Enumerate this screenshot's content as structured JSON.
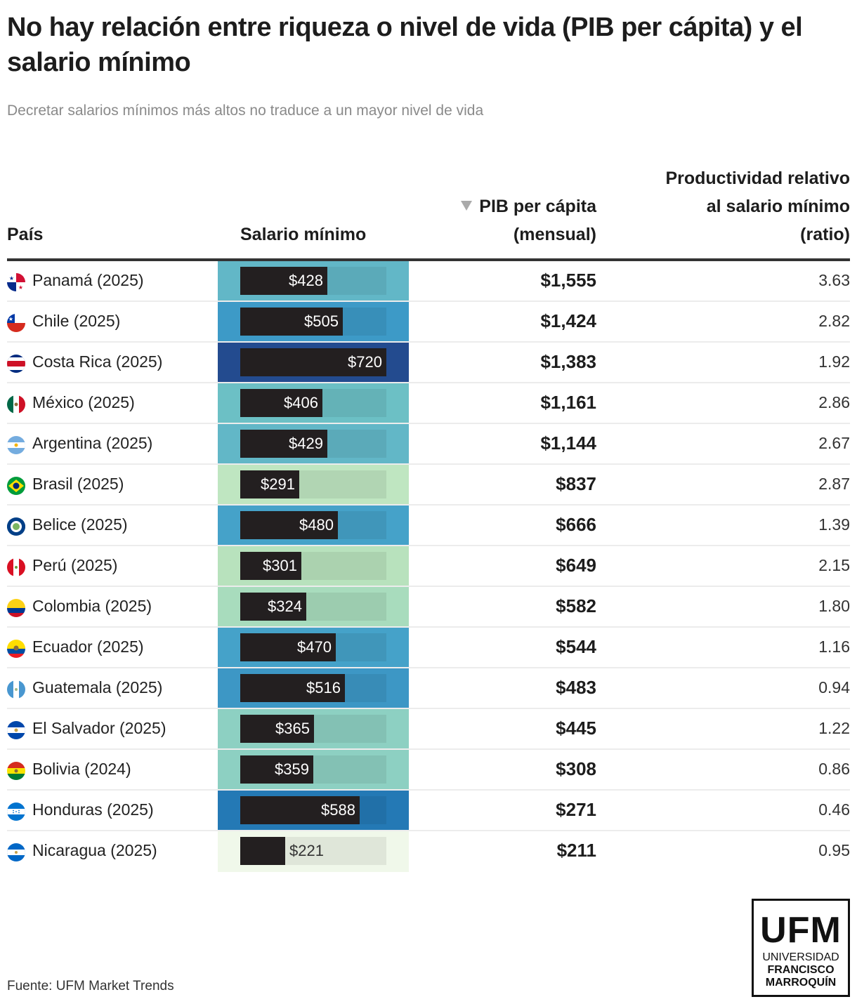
{
  "header": {
    "title": "No hay relación entre riqueza o nivel de vida (PIB per cápita) y el salario mínimo",
    "subtitle": "Decretar salarios mínimos más altos no traduce a un mayor nivel de vida"
  },
  "columns": {
    "pais": "País",
    "salario": "Salario mínimo",
    "pib_line1": "PIB per cápita",
    "pib_line2": "(mensual)",
    "ratio_line1": "Productividad relativo",
    "ratio_line2": "al salario mínimo",
    "ratio_line3": "(ratio)",
    "sort_icon": "sort-descending-triangle"
  },
  "footer": {
    "source": "Fuente: UFM Market Trends",
    "logo_main": "UFM",
    "logo_line1": "UNIVERSIDAD",
    "logo_line2": "FRANCISCO",
    "logo_line3": "MARROQUÍN"
  },
  "chart_data": {
    "type": "table",
    "title": "No hay relación entre riqueza o nivel de vida (PIB per cápita) y el salario mínimo",
    "subtitle": "Decretar salarios mínimos más altos no traduce a un mayor nivel de vida",
    "columns": [
      "País",
      "Salario mínimo",
      "PIB per cápita (mensual)",
      "Productividad relativo al salario mínimo (ratio)"
    ],
    "sorted_by": "PIB per cápita (mensual)",
    "sort_order": "descending",
    "salary_bar_max": 720,
    "rows": [
      {
        "country": "Panamá (2025)",
        "flag": "panama-flag-icon",
        "salary": 428,
        "salary_label": "$428",
        "pib": "$1,555",
        "ratio": "3.63",
        "cell_color": "#62b7c7"
      },
      {
        "country": "Chile (2025)",
        "flag": "chile-flag-icon",
        "salary": 505,
        "salary_label": "$505",
        "pib": "$1,424",
        "ratio": "2.82",
        "cell_color": "#3d9ac7"
      },
      {
        "country": "Costa Rica (2025)",
        "flag": "costa-rica-flag-icon",
        "salary": 720,
        "salary_label": "$720",
        "pib": "$1,383",
        "ratio": "1.92",
        "cell_color": "#234b8f"
      },
      {
        "country": "México (2025)",
        "flag": "mexico-flag-icon",
        "salary": 406,
        "salary_label": "$406",
        "pib": "$1,161",
        "ratio": "2.86",
        "cell_color": "#6cc0c5"
      },
      {
        "country": "Argentina (2025)",
        "flag": "argentina-flag-icon",
        "salary": 429,
        "salary_label": "$429",
        "pib": "$1,144",
        "ratio": "2.67",
        "cell_color": "#62b7c7"
      },
      {
        "country": "Brasil (2025)",
        "flag": "brasil-flag-icon",
        "salary": 291,
        "salary_label": "$291",
        "pib": "$837",
        "ratio": "2.87",
        "cell_color": "#bfe6c1"
      },
      {
        "country": "Belice (2025)",
        "flag": "belice-flag-icon",
        "salary": 480,
        "salary_label": "$480",
        "pib": "$666",
        "ratio": "1.39",
        "cell_color": "#45a2c9"
      },
      {
        "country": "Perú (2025)",
        "flag": "peru-flag-icon",
        "salary": 301,
        "salary_label": "$301",
        "pib": "$649",
        "ratio": "2.15",
        "cell_color": "#b8e2bd"
      },
      {
        "country": "Colombia (2025)",
        "flag": "colombia-flag-icon",
        "salary": 324,
        "salary_label": "$324",
        "pib": "$582",
        "ratio": "1.80",
        "cell_color": "#a8dcbd"
      },
      {
        "country": "Ecuador (2025)",
        "flag": "ecuador-flag-icon",
        "salary": 470,
        "salary_label": "$470",
        "pib": "$544",
        "ratio": "1.16",
        "cell_color": "#45a2c9"
      },
      {
        "country": "Guatemala (2025)",
        "flag": "guatemala-flag-icon",
        "salary": 516,
        "salary_label": "$516",
        "pib": "$483",
        "ratio": "0.94",
        "cell_color": "#3d97c5"
      },
      {
        "country": "El Salvador (2025)",
        "flag": "el-salvador-flag-icon",
        "salary": 365,
        "salary_label": "$365",
        "pib": "$445",
        "ratio": "1.22",
        "cell_color": "#8dd0c2"
      },
      {
        "country": "Bolivia (2024)",
        "flag": "bolivia-flag-icon",
        "salary": 359,
        "salary_label": "$359",
        "pib": "$308",
        "ratio": "0.86",
        "cell_color": "#8dd0c2"
      },
      {
        "country": "Honduras (2025)",
        "flag": "honduras-flag-icon",
        "salary": 588,
        "salary_label": "$588",
        "pib": "$271",
        "ratio": "0.46",
        "cell_color": "#2479b5"
      },
      {
        "country": "Nicaragua (2025)",
        "flag": "nicaragua-flag-icon",
        "salary": 221,
        "salary_label": "$221",
        "pib": "$211",
        "ratio": "0.95",
        "cell_color": "#f0f8ea"
      }
    ]
  }
}
